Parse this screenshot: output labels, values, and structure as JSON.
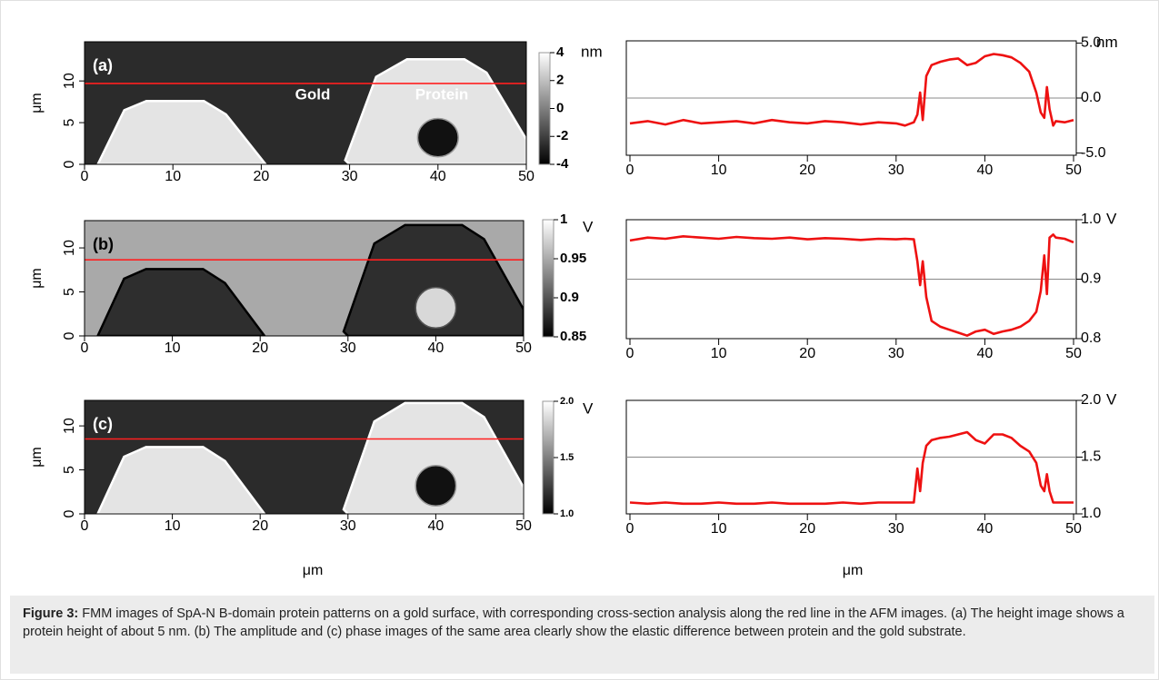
{
  "figure": {
    "xlabels": [
      "μm",
      "μm"
    ],
    "panels": [
      {
        "label": "(a)",
        "image": {
          "xlim": [
            0,
            50
          ],
          "xticks": [
            0,
            10,
            20,
            30,
            40,
            50
          ],
          "ylim": [
            0,
            14.7
          ],
          "yticks": [
            0,
            5,
            10
          ],
          "ylabel": "μm",
          "annotations": [
            "Gold",
            "Protein"
          ],
          "colorbar": {
            "lim": [
              -4,
              4
            ],
            "ticks": [
              4,
              2,
              0,
              -2,
              -4
            ],
            "unit": "nm"
          }
        },
        "profile": {
          "type": "line",
          "color": "#ee1111",
          "xlim": [
            0,
            50
          ],
          "xticks": [
            0,
            10,
            20,
            30,
            40,
            50
          ],
          "ylim": [
            -5.2,
            5.2
          ],
          "yticks": [
            {
              "value": 5,
              "label": "5.0"
            },
            {
              "value": 0,
              "label": "0.0"
            },
            {
              "value": -5,
              "label": "-5.0"
            }
          ],
          "unit": "nm",
          "reference": 0,
          "x": [
            0,
            2,
            4,
            6,
            8,
            10,
            12,
            14,
            16,
            18,
            20,
            22,
            24,
            26,
            28,
            30,
            31,
            32,
            32.4,
            32.7,
            33,
            33.4,
            34,
            35,
            36,
            37,
            38,
            39,
            40,
            41,
            42,
            43,
            44,
            45,
            45.8,
            46.3,
            46.7,
            47,
            47.3,
            47.7,
            48,
            49,
            50
          ],
          "values": [
            -2.3,
            -2.1,
            -2.4,
            -2.0,
            -2.3,
            -2.2,
            -2.1,
            -2.3,
            -2.0,
            -2.2,
            -2.3,
            -2.1,
            -2.2,
            -2.4,
            -2.2,
            -2.3,
            -2.5,
            -2.2,
            -1.5,
            0.5,
            -2.0,
            2.0,
            3.0,
            3.3,
            3.5,
            3.6,
            3.0,
            3.2,
            3.8,
            4.0,
            3.9,
            3.7,
            3.2,
            2.4,
            0.5,
            -1.3,
            -1.8,
            1.0,
            -1.0,
            -2.5,
            -2.1,
            -2.2,
            -2.0
          ]
        }
      },
      {
        "label": "(b)",
        "image": {
          "xlim": [
            0,
            50
          ],
          "xticks": [
            0,
            10,
            20,
            30,
            40,
            50
          ],
          "ylim": [
            0,
            13.1
          ],
          "yticks": [
            0,
            5,
            10
          ],
          "ylabel": "μm",
          "colorbar": {
            "lim": [
              0.85,
              1
            ],
            "ticks": [
              1,
              0.95,
              0.9,
              0.85
            ],
            "unit": "V"
          }
        },
        "profile": {
          "type": "line",
          "color": "#ee1111",
          "xlim": [
            0,
            50
          ],
          "xticks": [
            0,
            10,
            20,
            30,
            40,
            50
          ],
          "ylim": [
            0.8,
            1.0
          ],
          "yticks": [
            {
              "value": 1.0,
              "label": "1.0"
            },
            0.9,
            0.8
          ],
          "unit": "V",
          "reference": 0.9,
          "x": [
            0,
            2,
            4,
            6,
            8,
            10,
            12,
            14,
            16,
            18,
            20,
            22,
            24,
            26,
            28,
            30,
            31,
            32,
            32.4,
            32.7,
            33,
            33.4,
            34,
            35,
            36,
            37,
            38,
            39,
            40,
            41,
            42,
            43,
            44,
            45,
            45.8,
            46.3,
            46.7,
            47,
            47.3,
            47.7,
            48,
            49,
            50
          ],
          "values": [
            0.965,
            0.97,
            0.968,
            0.972,
            0.97,
            0.968,
            0.971,
            0.969,
            0.968,
            0.97,
            0.967,
            0.969,
            0.968,
            0.966,
            0.968,
            0.967,
            0.968,
            0.967,
            0.93,
            0.89,
            0.93,
            0.87,
            0.83,
            0.82,
            0.815,
            0.81,
            0.805,
            0.812,
            0.815,
            0.808,
            0.812,
            0.815,
            0.82,
            0.83,
            0.845,
            0.88,
            0.94,
            0.875,
            0.97,
            0.975,
            0.97,
            0.968,
            0.962
          ]
        }
      },
      {
        "label": "(c)",
        "image": {
          "xlim": [
            0,
            50
          ],
          "xticks": [
            0,
            10,
            20,
            30,
            40,
            50
          ],
          "ylim": [
            0,
            12.9
          ],
          "yticks": [
            0,
            5,
            10
          ],
          "ylabel": "μm",
          "colorbar": {
            "lim": [
              1,
              2
            ],
            "ticks": [
              {
                "value": 2,
                "label": "2.0"
              },
              1.5,
              {
                "value": 1,
                "label": "1.0"
              }
            ],
            "unit": "V"
          }
        },
        "profile": {
          "type": "line",
          "color": "#ee1111",
          "xlim": [
            0,
            50
          ],
          "xticks": [
            0,
            10,
            20,
            30,
            40,
            50
          ],
          "ylim": [
            1.0,
            2.0
          ],
          "yticks": [
            {
              "value": 2,
              "label": "2.0"
            },
            1.5,
            {
              "value": 1,
              "label": "1.0"
            }
          ],
          "unit": "V",
          "reference": 1.5,
          "x": [
            0,
            2,
            4,
            6,
            8,
            10,
            12,
            14,
            16,
            18,
            20,
            22,
            24,
            26,
            28,
            30,
            31,
            32,
            32.4,
            32.7,
            33,
            33.4,
            34,
            35,
            36,
            37,
            38,
            39,
            40,
            41,
            42,
            43,
            44,
            45,
            45.8,
            46.3,
            46.7,
            47,
            47.3,
            47.7,
            48,
            49,
            50
          ],
          "values": [
            1.1,
            1.09,
            1.1,
            1.09,
            1.09,
            1.1,
            1.09,
            1.09,
            1.1,
            1.09,
            1.09,
            1.09,
            1.1,
            1.09,
            1.1,
            1.1,
            1.1,
            1.1,
            1.4,
            1.2,
            1.45,
            1.6,
            1.65,
            1.67,
            1.68,
            1.7,
            1.72,
            1.65,
            1.62,
            1.7,
            1.7,
            1.67,
            1.6,
            1.55,
            1.45,
            1.25,
            1.2,
            1.35,
            1.2,
            1.1,
            1.1,
            1.1,
            1.1
          ]
        }
      }
    ]
  },
  "caption": {
    "label": "Figure 3:",
    "text": "FMM images of SpA-N B-domain protein patterns on a gold surface, with corresponding cross-section analysis along the red line in the AFM images. (a) The height image shows a protein height of about 5 nm. (b) The amplitude and (c) phase images of the same area clearly show the elastic difference between protein and the gold substrate."
  }
}
